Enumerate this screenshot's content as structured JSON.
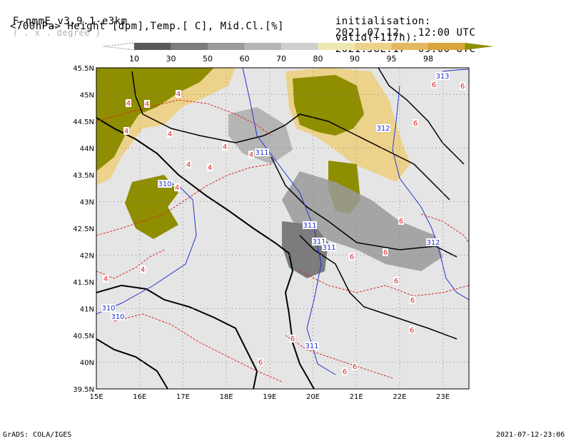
{
  "header": {
    "model": "F-nmmE_v3.9.1-e3km",
    "units_hint": "( . x . degree )",
    "fields": "<700hPa> Height [dpm],Temp.[ C], Mid.Cl.[%]",
    "init_label": "initialisation:",
    "init_value": "2021.07.12.  12:00 UTC",
    "valid_label": "valid(+117h):",
    "valid_value": "2021.JUL.17  09:00 UTC"
  },
  "colorbar": {
    "labels": [
      "10",
      "30",
      "50",
      "60",
      "70",
      "80",
      "90",
      "95",
      "98"
    ],
    "colors": [
      "#5a5a5a",
      "#7c7c7c",
      "#9a9a9a",
      "#b5b5b5",
      "#cfcfcf",
      "#efe7b0",
      "#ecd28a",
      "#e3b862",
      "#d9a53a",
      "#8e8e00"
    ]
  },
  "map": {
    "lat_labels": [
      "45.5N",
      "45N",
      "44.5N",
      "44N",
      "43.5N",
      "43N",
      "42.5N",
      "42N",
      "41.5N",
      "41N",
      "40.5N",
      "40N",
      "39.5N"
    ],
    "lon_labels": [
      "15E",
      "16E",
      "17E",
      "18E",
      "19E",
      "20E",
      "21E",
      "22E",
      "23E"
    ],
    "height_labels": [
      "313",
      "312",
      "311",
      "310",
      "311",
      "311",
      "312",
      "311",
      "310",
      "310",
      "311"
    ],
    "temp_labels": [
      "6",
      "6",
      "6",
      "4",
      "4",
      "4",
      "4",
      "4",
      "4",
      "4",
      "4",
      "4",
      "4",
      "4",
      "4",
      "6",
      "6",
      "6",
      "6",
      "6",
      "6",
      "6",
      "6",
      "6",
      "6"
    ]
  },
  "footer": {
    "left": "GrADS: COLA/IGES",
    "right": "2021-07-12-23:06"
  }
}
